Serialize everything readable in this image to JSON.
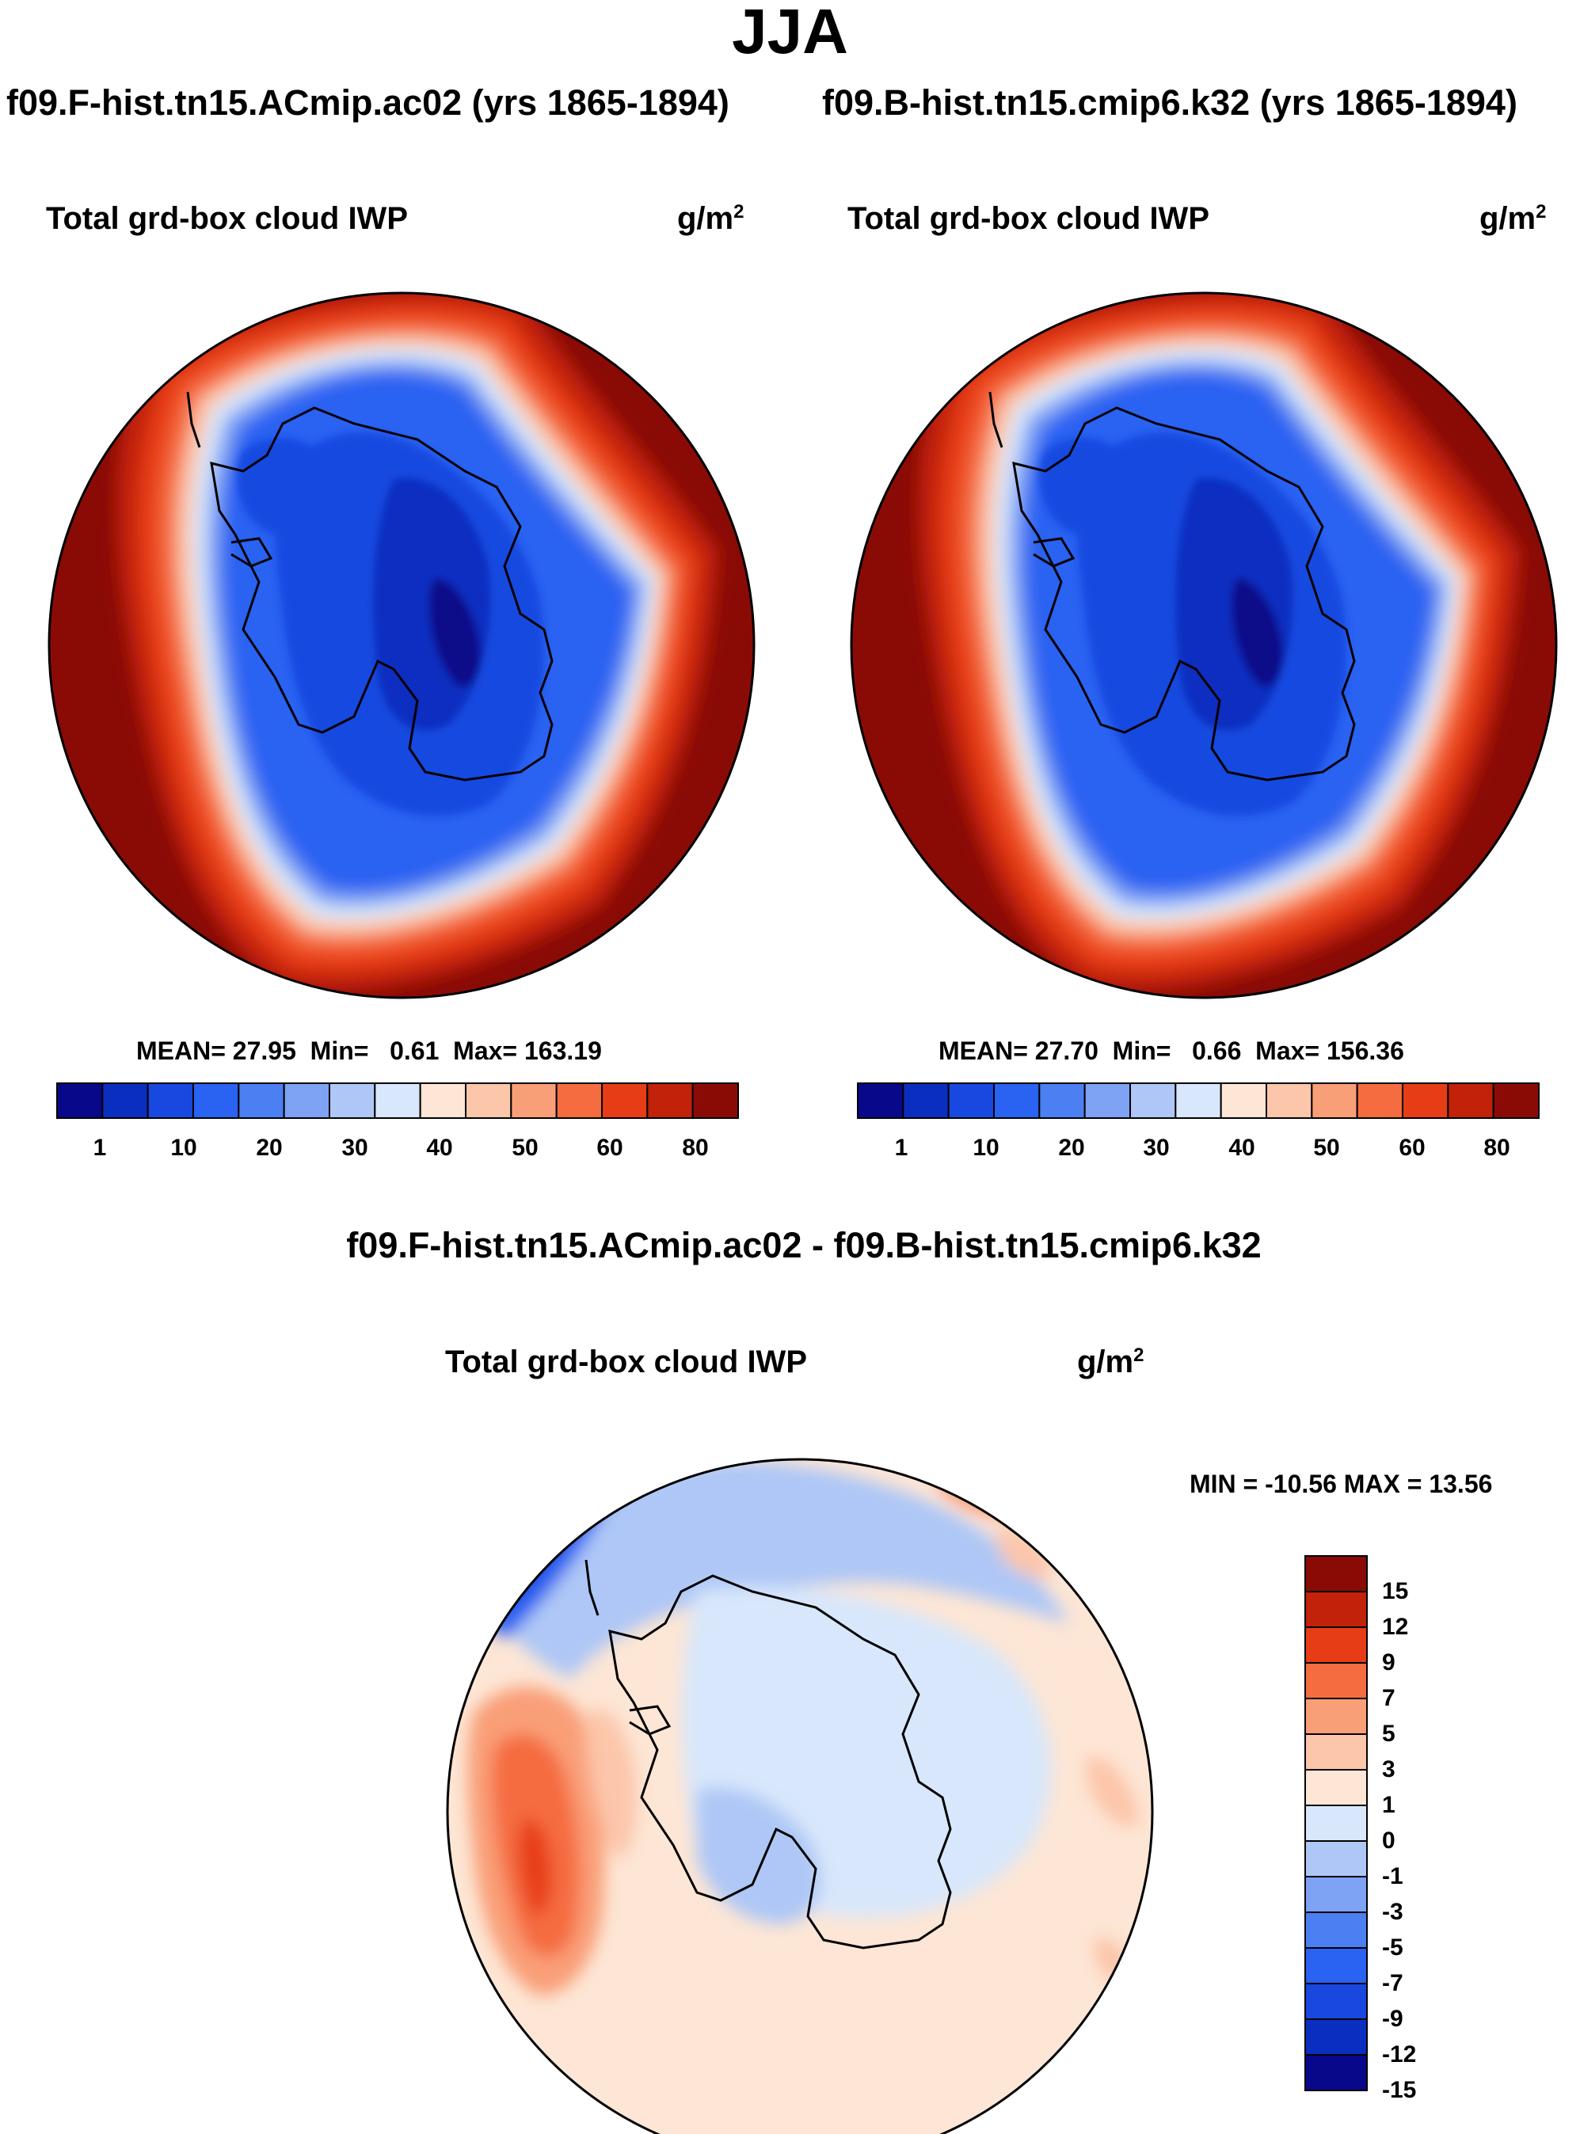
{
  "season": "JJA",
  "panels": [
    {
      "experiment": "f09.F-hist.tn15.ACmip.ac02 (yrs 1865-1894)",
      "variable": "Total grd-box cloud IWP",
      "unit_base": "g/m",
      "unit_exp": "2",
      "stats": {
        "mean_label": "MEAN=",
        "mean": "27.95",
        "min_label": "Min=",
        "min": "0.61",
        "max_label": "Max=",
        "max": "163.19"
      }
    },
    {
      "experiment": "f09.B-hist.tn15.cmip6.k32 (yrs 1865-1894)",
      "variable": "Total grd-box cloud IWP",
      "unit_base": "g/m",
      "unit_exp": "2",
      "stats": {
        "mean_label": "MEAN=",
        "mean": "27.70",
        "min_label": "Min=",
        "min": "0.66",
        "max_label": "Max=",
        "max": "156.36"
      }
    }
  ],
  "abs_colorbar": {
    "colors": [
      "#08088a",
      "#0a2fc0",
      "#1848e0",
      "#2a62f2",
      "#4c7ff2",
      "#7ea2f4",
      "#aec7f6",
      "#d8e7fb",
      "#fde6d5",
      "#fcc6aa",
      "#f99f78",
      "#f56c40",
      "#e73d17",
      "#c2210a",
      "#8a0b06"
    ],
    "ticks": [
      "1",
      "10",
      "20",
      "30",
      "40",
      "50",
      "60",
      "80"
    ]
  },
  "diff": {
    "title": "f09.F-hist.tn15.ACmip.ac02 - f09.B-hist.tn15.cmip6.k32",
    "variable": "Total grd-box cloud IWP",
    "unit_base": "g/m",
    "unit_exp": "2",
    "minmax": "MIN = -10.56 MAX =  13.56"
  },
  "diff_colorbar": {
    "colors": [
      "#8a0b06",
      "#c2210a",
      "#e73d17",
      "#f56c40",
      "#f99f78",
      "#fcc6aa",
      "#fde6d5",
      "#d8e7fb",
      "#aec7f6",
      "#7ea2f4",
      "#4c7ff2",
      "#2a62f2",
      "#1848e0",
      "#0a2fc0",
      "#08088a"
    ],
    "ticks": [
      "15",
      "12",
      "9",
      "7",
      "5",
      "3",
      "1",
      "0",
      "-1",
      "-3",
      "-5",
      "-7",
      "-9",
      "-12",
      "-15"
    ]
  }
}
